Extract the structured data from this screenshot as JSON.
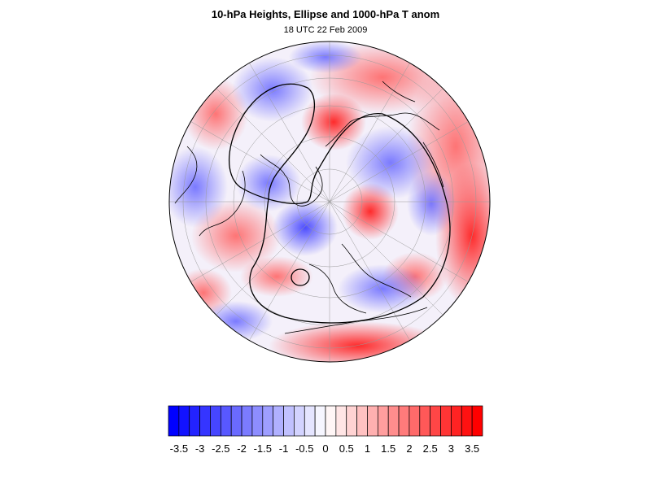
{
  "title": "10-hPa Heights, Ellipse and 1000-hPa T anom",
  "subtitle": "18 UTC 22 Feb 2009",
  "colorbar": {
    "min": -3.75,
    "max": 3.75,
    "step": 0.25,
    "tick_labels": [
      "-3.5",
      "-3",
      "-2.5",
      "-2",
      "-1.5",
      "-1",
      "-0.5",
      "0",
      "0.5",
      "1",
      "1.5",
      "2",
      "2.5",
      "3",
      "3.5"
    ],
    "tick_values": [
      -3.5,
      -3,
      -2.5,
      -2,
      -1.5,
      -1,
      -0.5,
      0,
      0.5,
      1,
      1.5,
      2,
      2.5,
      3,
      3.5
    ],
    "negative_color": "#0000ff",
    "positive_color": "#ff0000",
    "neutral_color": "#ffffff"
  },
  "map": {
    "projection": "north-polar-orthographic",
    "gridlines": true,
    "ellipse_contour": true,
    "background_field": "1000-hPa temperature anomaly"
  }
}
